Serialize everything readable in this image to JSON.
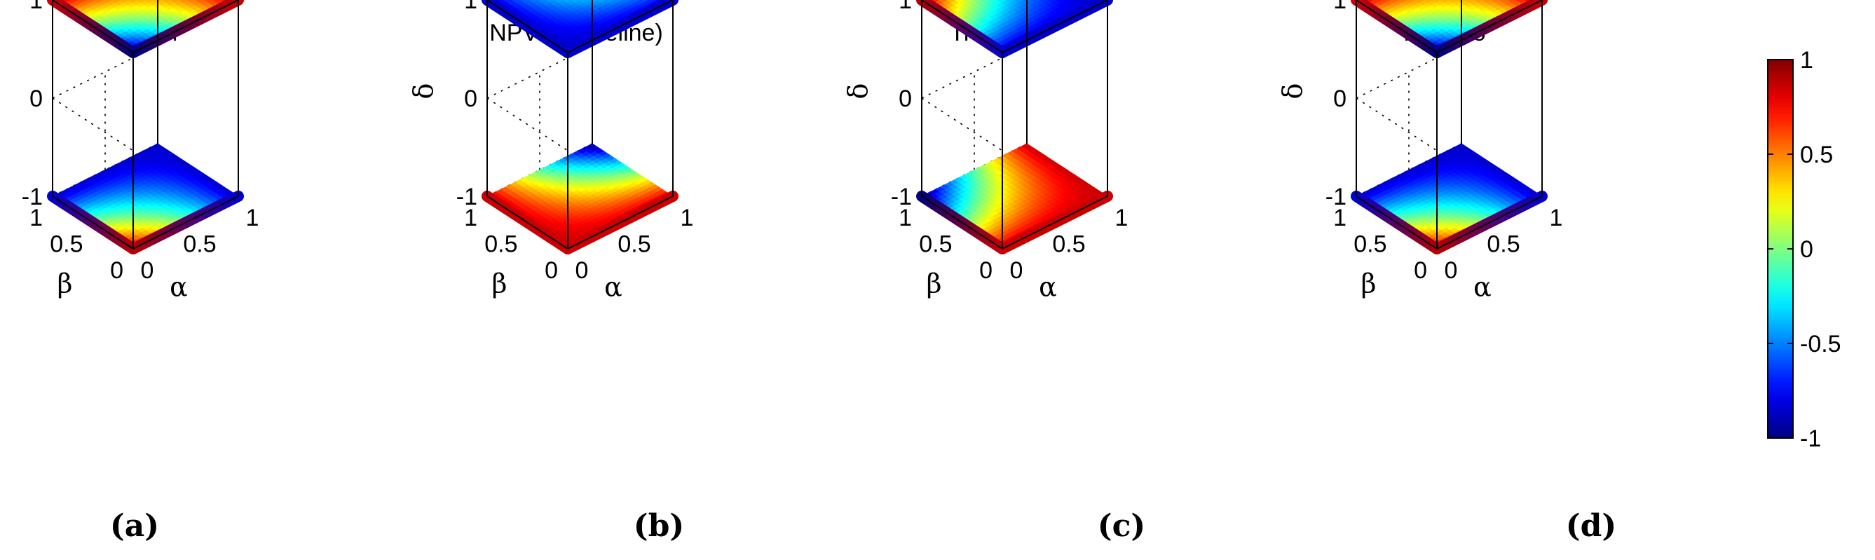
{
  "figure": {
    "description_free": true
  },
  "chart_data": [
    {
      "type": "heatmap",
      "panel_letter": "(a)",
      "title": "PRCn",
      "xlabel": "α",
      "ylabel": "β",
      "zlabel": "δ",
      "x_ticks": [
        "0",
        "0.5",
        "1"
      ],
      "y_ticks": [
        "0",
        "0.5",
        "1"
      ],
      "z_ticks": [
        "-1",
        "0",
        "1"
      ],
      "xlim": [
        0,
        1
      ],
      "ylim": [
        0,
        1
      ],
      "zlim": [
        -1,
        1
      ],
      "surfaces": [
        {
          "delta": 1,
          "corner_values": {
            "a0b0": -1,
            "a1b0": 0.85,
            "a0b1": 0.85,
            "a1b1": 0.85
          }
        },
        {
          "delta": -1,
          "corner_values": {
            "a0b0": 0.9,
            "a1b0": -0.85,
            "a0b1": -0.85,
            "a1b1": -0.85
          }
        }
      ]
    },
    {
      "type": "heatmap",
      "panel_letter": "(b)",
      "title": "NPVn (baseline)",
      "xlabel": "α",
      "ylabel": "β",
      "zlabel": "δ",
      "x_ticks": [
        "0",
        "0.5",
        "1"
      ],
      "y_ticks": [
        "0",
        "0.5",
        "1"
      ],
      "z_ticks": [
        "-1",
        "0",
        "1"
      ],
      "xlim": [
        0,
        1
      ],
      "ylim": [
        0,
        1
      ],
      "zlim": [
        -1,
        1
      ],
      "surfaces": [
        {
          "delta": 1,
          "corner_values": {
            "a0b0": -0.85,
            "a1b0": -0.85,
            "a0b1": -0.85,
            "a1b1": 0.9
          }
        },
        {
          "delta": -1,
          "corner_values": {
            "a0b0": 0.85,
            "a1b0": 0.85,
            "a0b1": 0.85,
            "a1b1": -1
          }
        }
      ]
    },
    {
      "type": "heatmap",
      "panel_letter": "(c)",
      "title": "Trans. σ",
      "xlabel": "α",
      "ylabel": "β",
      "zlabel": "δ",
      "x_ticks": [
        "0",
        "0.5",
        "1"
      ],
      "y_ticks": [
        "0",
        "0.5",
        "1"
      ],
      "z_ticks": [
        "-1",
        "0",
        "1"
      ],
      "xlim": [
        0,
        1
      ],
      "ylim": [
        0,
        1
      ],
      "zlim": [
        -1,
        1
      ],
      "surfaces": [
        {
          "delta": 1,
          "corner_values": {
            "a0b0": -0.85,
            "a1b0": -0.85,
            "a0b1": 0.9,
            "a1b1": -0.85
          }
        },
        {
          "delta": -1,
          "corner_values": {
            "a0b0": 0.85,
            "a1b0": 0.85,
            "a0b1": -1,
            "a1b1": 0.85
          }
        }
      ]
    },
    {
      "type": "heatmap",
      "panel_letter": "(d)",
      "title": "Trans. δ",
      "xlabel": "α",
      "ylabel": "β",
      "zlabel": "δ",
      "x_ticks": [
        "0",
        "0.5",
        "1"
      ],
      "y_ticks": [
        "0",
        "0.5",
        "1"
      ],
      "z_ticks": [
        "-1",
        "0",
        "1"
      ],
      "xlim": [
        0,
        1
      ],
      "ylim": [
        0,
        1
      ],
      "zlim": [
        -1,
        1
      ],
      "surfaces": [
        {
          "delta": 1,
          "corner_values": {
            "a0b0": -1,
            "a1b0": 0.85,
            "a0b1": 0.85,
            "a1b1": 0.85
          }
        },
        {
          "delta": -1,
          "corner_values": {
            "a0b0": 0.9,
            "a1b0": -0.85,
            "a0b1": -0.85,
            "a1b1": -0.85
          }
        }
      ]
    }
  ],
  "colorbar": {
    "colormap": "jet",
    "range": [
      -1,
      1
    ],
    "ticks": [
      {
        "value": 1,
        "label": "1"
      },
      {
        "value": 0.5,
        "label": "0.5"
      },
      {
        "value": 0,
        "label": "0"
      },
      {
        "value": -0.5,
        "label": "-0.5"
      },
      {
        "value": -1,
        "label": "-1"
      }
    ]
  }
}
